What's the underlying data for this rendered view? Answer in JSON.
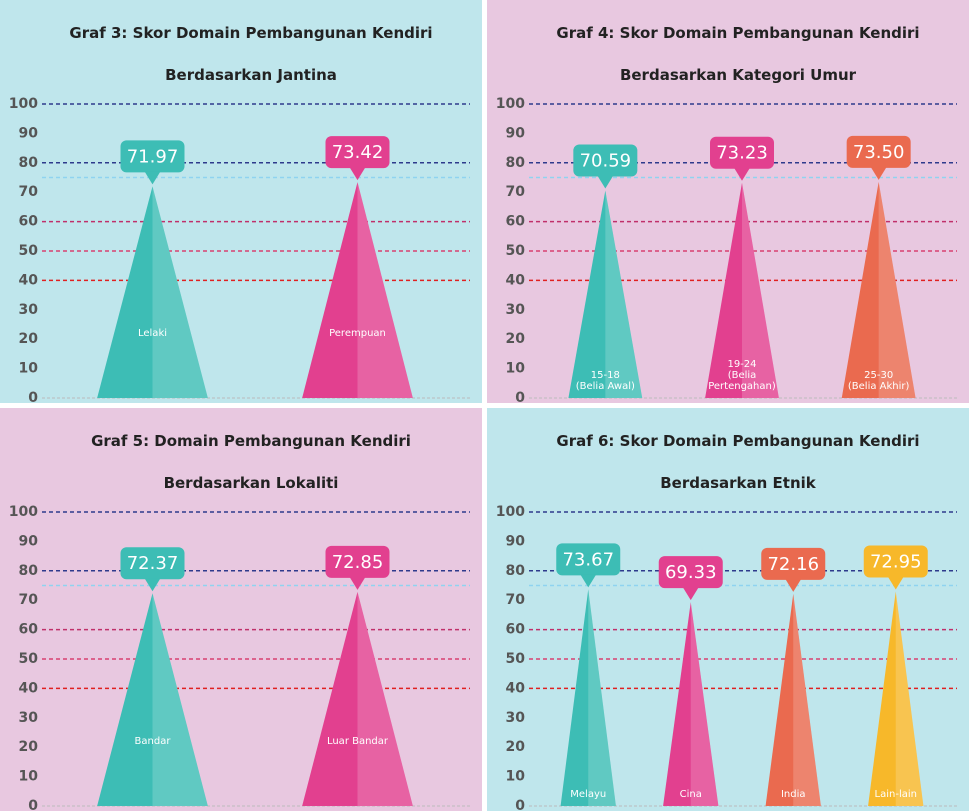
{
  "chart_data": [
    {
      "type": "bar",
      "title": "Graf 3: Skor Domain Pembangunan Kendiri\nBerdasarkan Jantina",
      "categories": [
        "Lelaki",
        "Perempuan"
      ],
      "values": [
        71.97,
        73.42
      ],
      "colors": [
        "#3dbdb5",
        "#e2408f"
      ],
      "background": "#bfe6ec",
      "ylim": [
        0,
        100
      ],
      "yticks": [
        0,
        10,
        20,
        30,
        40,
        50,
        60,
        70,
        80,
        90,
        100
      ],
      "reference_lines": [
        {
          "value": 100,
          "color": "#2e3a8c"
        },
        {
          "value": 80,
          "color": "#2e3a8c"
        },
        {
          "value": 75,
          "color": "#8fd3f0"
        },
        {
          "value": 60,
          "color": "#c0306a"
        },
        {
          "value": 50,
          "color": "#d84070"
        },
        {
          "value": 40,
          "color": "#e02020"
        }
      ]
    },
    {
      "type": "bar",
      "title": "Graf 4: Skor Domain Pembangunan Kendiri\nBerdasarkan Kategori Umur",
      "categories": [
        "15-18\n(Belia Awal)",
        "19-24\n(Belia\nPertengahan)",
        "25-30\n(Belia Akhir)"
      ],
      "values": [
        70.59,
        73.23,
        73.5
      ],
      "value_labels": [
        "70.59",
        "73.23",
        "73.50"
      ],
      "colors": [
        "#3dbdb5",
        "#e2408f",
        "#ea6a4f"
      ],
      "background": "#e8c8e0",
      "ylim": [
        0,
        100
      ],
      "yticks": [
        0,
        10,
        20,
        30,
        40,
        50,
        60,
        70,
        80,
        90,
        100
      ],
      "reference_lines": [
        {
          "value": 100,
          "color": "#2e3a8c"
        },
        {
          "value": 80,
          "color": "#2e3a8c"
        },
        {
          "value": 75,
          "color": "#8fd3f0"
        },
        {
          "value": 60,
          "color": "#c0306a"
        },
        {
          "value": 50,
          "color": "#d84070"
        },
        {
          "value": 40,
          "color": "#e02020"
        }
      ]
    },
    {
      "type": "bar",
      "title": "Graf 5: Domain Pembangunan Kendiri\nBerdasarkan Lokaliti",
      "categories": [
        "Bandar",
        "Luar Bandar"
      ],
      "values": [
        72.37,
        72.85
      ],
      "colors": [
        "#3dbdb5",
        "#e2408f"
      ],
      "background": "#e8c8e0",
      "ylim": [
        0,
        100
      ],
      "yticks": [
        0,
        10,
        20,
        30,
        40,
        50,
        60,
        70,
        80,
        90,
        100
      ],
      "reference_lines": [
        {
          "value": 100,
          "color": "#2e3a8c"
        },
        {
          "value": 80,
          "color": "#2e3a8c"
        },
        {
          "value": 75,
          "color": "#8fd3f0"
        },
        {
          "value": 60,
          "color": "#c0306a"
        },
        {
          "value": 50,
          "color": "#d84070"
        },
        {
          "value": 40,
          "color": "#e02020"
        }
      ]
    },
    {
      "type": "bar",
      "title": "Graf 6: Skor Domain Pembangunan Kendiri\nBerdasarkan Etnik",
      "categories": [
        "Melayu",
        "Cina",
        "India",
        "Lain-lain"
      ],
      "values": [
        73.67,
        69.33,
        72.16,
        72.95
      ],
      "colors": [
        "#3dbdb5",
        "#e2408f",
        "#ea6a4f",
        "#f7b82a"
      ],
      "background": "#bfe6ec",
      "ylim": [
        0,
        100
      ],
      "yticks": [
        0,
        10,
        20,
        30,
        40,
        50,
        60,
        70,
        80,
        90,
        100
      ],
      "reference_lines": [
        {
          "value": 100,
          "color": "#2e3a8c"
        },
        {
          "value": 80,
          "color": "#2e3a8c"
        },
        {
          "value": 75,
          "color": "#8fd3f0"
        },
        {
          "value": 60,
          "color": "#c0306a"
        },
        {
          "value": 50,
          "color": "#d84070"
        },
        {
          "value": 40,
          "color": "#e02020"
        }
      ]
    }
  ]
}
